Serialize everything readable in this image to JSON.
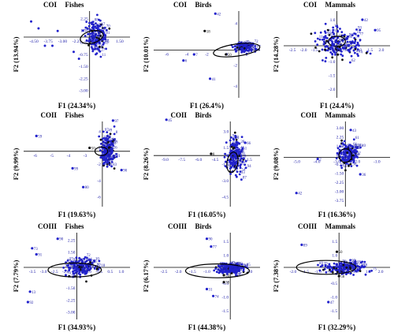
{
  "chart_data": [
    {
      "type": "scatter",
      "panel_title": "COI",
      "group": "Fishes",
      "xlabel": "F1 (24.34%)",
      "ylabel": "F2 (13.94%)",
      "xticks": [
        "-4.50",
        "-3.75",
        "-3.00",
        "-2.25",
        "-1.50",
        "0.75",
        "1.50"
      ],
      "yticks": [
        "2.25",
        "1.50",
        "0.75",
        "-0.75",
        "-1.50",
        "-2.25",
        "-3.00"
      ],
      "labeled_points": [],
      "blue": "#2222cc",
      "black": "#111111"
    },
    {
      "type": "scatter",
      "panel_title": "COI",
      "group": "Birds",
      "xlabel": "F1 (26.4%)",
      "ylabel": "F2 (10.01%)",
      "xticks": [
        "-6",
        "-4",
        "-2",
        "0",
        "2"
      ],
      "yticks": [
        "4",
        "2",
        "-2",
        "-4"
      ],
      "labeled_points": [
        "42",
        "18",
        "7",
        "6",
        "41",
        "50"
      ],
      "blue": "#2222cc",
      "black": "#111111"
    },
    {
      "type": "scatter",
      "panel_title": "COI",
      "group": "Mammals",
      "xlabel": "F1 (24.4%)",
      "ylabel": "F2 (14.28%)",
      "xticks": [
        "-2.5",
        "-2.0",
        "-1.5",
        "-1.0",
        "-0.5",
        "0.5",
        "1.0",
        "1.5",
        "2.0"
      ],
      "yticks": [
        "1.0",
        "0.5",
        "-0.5",
        "-1.0",
        "-1.5",
        "-2.0"
      ],
      "labeled_points": [
        "42",
        "95",
        "6"
      ],
      "blue": "#2222cc",
      "black": "#111111"
    },
    {
      "type": "scatter",
      "panel_title": "COII",
      "group": "Fishes",
      "xlabel": "F1 (19.63%)",
      "ylabel": "F2 (9.99%)",
      "xticks": [
        "-6",
        "-5",
        "-4",
        "-3",
        "-2",
        "-1"
      ],
      "yticks": [
        "4",
        "2",
        "-2",
        "-4",
        "-6"
      ],
      "labeled_points": [
        "59",
        "50",
        "99",
        "97",
        "90",
        "80"
      ],
      "blue": "#2222cc",
      "black": "#111111"
    },
    {
      "type": "scatter",
      "panel_title": "COII",
      "group": "Birds",
      "xlabel": "F1 (16.05%)",
      "ylabel": "F2 (8.26%)",
      "xticks": [
        "-9.0",
        "-7.5",
        "-6.0",
        "-4.5",
        "-3.0",
        "-1.5"
      ],
      "yticks": [
        "3.0",
        "1.5",
        "-1.5",
        "-3.0",
        "-4.5"
      ],
      "labeled_points": [
        "45",
        "8",
        "66"
      ],
      "blue": "#2222cc",
      "black": "#111111"
    },
    {
      "type": "scatter",
      "panel_title": "COII",
      "group": "Mammals",
      "xlabel": "F1 (16.36%)",
      "ylabel": "F2 (9.08%)",
      "xticks": [
        "-5.0",
        "-4.0",
        "-3.0",
        "-2.0",
        "-1.0"
      ],
      "yticks": [
        "3.00",
        "2.25",
        "1.50",
        "0.75",
        "-0.75",
        "-1.50",
        "-2.25",
        "-3.00",
        "-3.75"
      ],
      "labeled_points": [
        "43",
        "42",
        "36",
        "2"
      ],
      "blue": "#2222cc",
      "black": "#111111"
    },
    {
      "type": "scatter",
      "panel_title": "COIII",
      "group": "Fishes",
      "xlabel": "F1 (34.93%)",
      "ylabel": "F2 (7.79%)",
      "xticks": [
        "-3.5",
        "-3.0",
        "-2.5",
        "-2.0",
        "-1.5",
        "-1.0",
        "-0.5",
        "0.5",
        "1.0"
      ],
      "yticks": [
        "2.25",
        "1.50",
        "0.75",
        "-0.75",
        "-1.50",
        "-2.25",
        "-3.00"
      ],
      "labeled_points": [
        "90",
        "73",
        "91",
        "92",
        "13"
      ],
      "blue": "#2222cc",
      "black": "#111111"
    },
    {
      "type": "scatter",
      "panel_title": "COIII",
      "group": "Birds",
      "xlabel": "F1 (44.38%)",
      "ylabel": "F2 (6.17%)",
      "xticks": [
        "-2.5",
        "-2.0",
        "-1.5",
        "-1.0",
        "-0.5",
        "0.5",
        "1.0"
      ],
      "yticks": [
        "1.5",
        "1.0",
        "0.5",
        "-0.5",
        "-1.0",
        "-1.5"
      ],
      "labeled_points": [
        "90",
        "77",
        "50",
        "38",
        "31",
        "74"
      ],
      "blue": "#2222cc",
      "black": "#111111"
    },
    {
      "type": "scatter",
      "panel_title": "COIII",
      "group": "Mammals",
      "xlabel": "F1 (32.29%)",
      "ylabel": "F2 (7.38%)",
      "xticks": [
        "-2.0",
        "-1.5",
        "-1.0",
        "-0.5",
        "0.5",
        "1.0",
        "1.5",
        "2.0"
      ],
      "yticks": [
        "1.5",
        "1.0",
        "0.5",
        "-0.5",
        "-1.0",
        "-1.5"
      ],
      "labeled_points": [
        "89",
        "50",
        "58",
        "47"
      ],
      "blue": "#2222cc",
      "black": "#111111"
    }
  ]
}
